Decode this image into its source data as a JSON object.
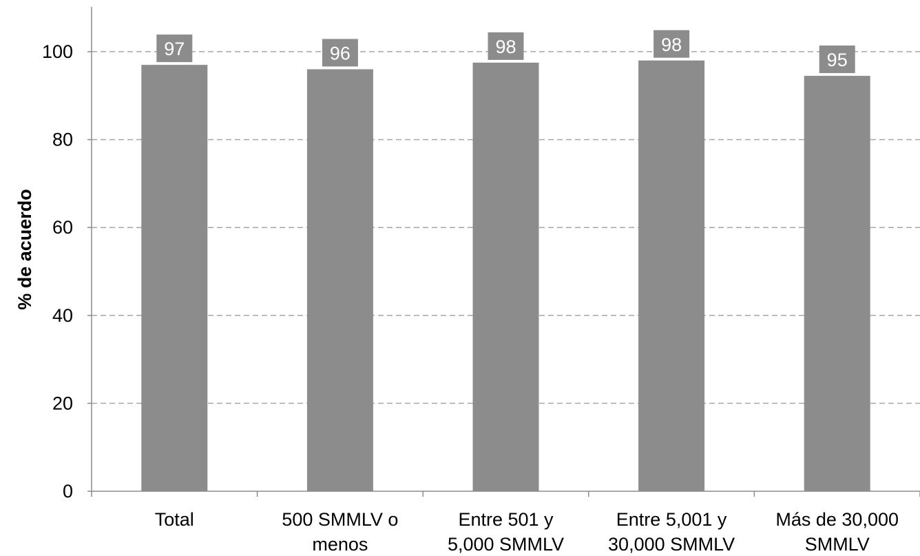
{
  "chart_data": {
    "type": "bar",
    "title": "",
    "xlabel": "",
    "ylabel": "% de acuerdo",
    "ylim": [
      0,
      110
    ],
    "yticks": [
      0,
      20,
      40,
      60,
      80,
      100
    ],
    "grid": true,
    "categories": [
      [
        "Total"
      ],
      [
        "500 SMMLV o",
        "menos"
      ],
      [
        "Entre 501 y",
        "5,000 SMMLV"
      ],
      [
        "Entre 5,001 y",
        "30,000 SMMLV"
      ],
      [
        "Más de 30,000",
        "SMMLV"
      ]
    ],
    "values": [
      97,
      96,
      97.5,
      98,
      94.5
    ],
    "data_labels": [
      "97",
      "96",
      "98",
      "98",
      "95"
    ],
    "colors": {
      "bar": "#8c8c8c",
      "label_bg": "#8c8c8c",
      "label_text": "#ffffff",
      "grid": "#a6a6a6",
      "axis": "#8c8c8c",
      "text": "#000000"
    }
  }
}
